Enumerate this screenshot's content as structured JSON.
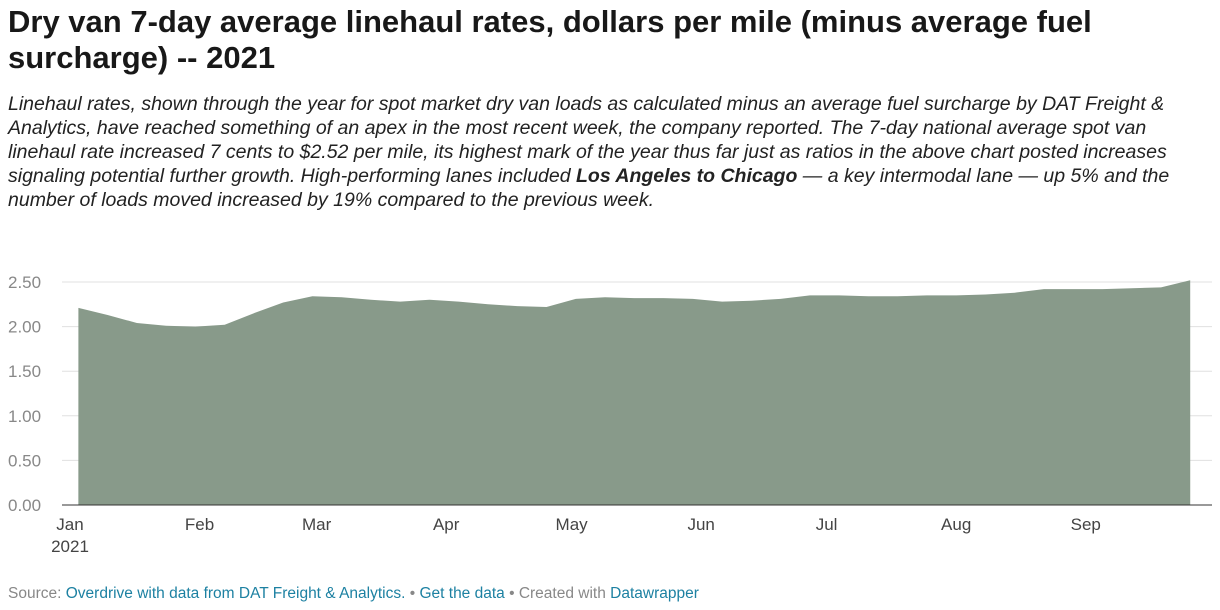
{
  "title": "Dry van 7-day average linehaul rates, dollars per mile (minus average fuel surcharge) -- 2021",
  "description": {
    "part1": "Linehaul rates, shown through the year for spot market dry van loads as calculated minus an average fuel surcharge by DAT Freight & Analytics, have reached something of an apex in the most recent week, the company reported. The 7-day national average spot van linehaul rate increased 7 cents to $2.52 per mile, its highest mark of the year thus far just as ratios in the above chart posted increases signaling potential further growth. High-performing lanes included ",
    "bold": "Los Angeles to Chicago",
    "part2": " — a key intermodal lane — up 5% and the number of loads moved increased by 19% compared to the previous week."
  },
  "footer": {
    "source_label": "Source: ",
    "source_link": "Overdrive with data from DAT Freight & Analytics.",
    "sep1": " • ",
    "get_data": "Get the data",
    "sep2": " • Created with ",
    "datawrapper": "Datawrapper"
  },
  "colors": {
    "area": "#889a8a",
    "grid": "#e0e0e0",
    "tick_text": "#888888",
    "link": "#1d81a2"
  },
  "chart_data": {
    "type": "area",
    "title": "",
    "xlabel": "",
    "ylabel": "",
    "ylim": [
      0,
      2.5
    ],
    "yticks": [
      "0.00",
      "0.50",
      "1.00",
      "1.50",
      "2.00",
      "2.50"
    ],
    "xticks": [
      {
        "date": "2021-01-01",
        "label": "Jan",
        "sublabel": "2021"
      },
      {
        "date": "2021-02-01",
        "label": "Feb"
      },
      {
        "date": "2021-03-01",
        "label": "Mar"
      },
      {
        "date": "2021-04-01",
        "label": "Apr"
      },
      {
        "date": "2021-05-01",
        "label": "May"
      },
      {
        "date": "2021-06-01",
        "label": "Jun"
      },
      {
        "date": "2021-07-01",
        "label": "Jul"
      },
      {
        "date": "2021-08-01",
        "label": "Aug"
      },
      {
        "date": "2021-09-01",
        "label": "Sep"
      }
    ],
    "grid": true,
    "x": [
      "2021-01-03",
      "2021-01-10",
      "2021-01-17",
      "2021-01-24",
      "2021-01-31",
      "2021-02-07",
      "2021-02-14",
      "2021-02-21",
      "2021-02-28",
      "2021-03-07",
      "2021-03-14",
      "2021-03-21",
      "2021-03-28",
      "2021-04-04",
      "2021-04-11",
      "2021-04-18",
      "2021-04-25",
      "2021-05-02",
      "2021-05-09",
      "2021-05-16",
      "2021-05-23",
      "2021-05-30",
      "2021-06-06",
      "2021-06-13",
      "2021-06-20",
      "2021-06-27",
      "2021-07-04",
      "2021-07-11",
      "2021-07-18",
      "2021-07-25",
      "2021-08-01",
      "2021-08-08",
      "2021-08-15",
      "2021-08-22",
      "2021-08-29",
      "2021-09-05",
      "2021-09-12",
      "2021-09-19",
      "2021-09-26"
    ],
    "values": [
      2.21,
      2.13,
      2.04,
      2.01,
      2.0,
      2.02,
      2.15,
      2.27,
      2.34,
      2.33,
      2.3,
      2.28,
      2.3,
      2.28,
      2.25,
      2.23,
      2.22,
      2.31,
      2.33,
      2.32,
      2.32,
      2.31,
      2.28,
      2.29,
      2.31,
      2.35,
      2.35,
      2.34,
      2.34,
      2.35,
      2.35,
      2.36,
      2.38,
      2.42,
      2.42,
      2.42,
      2.43,
      2.44,
      2.52
    ]
  }
}
